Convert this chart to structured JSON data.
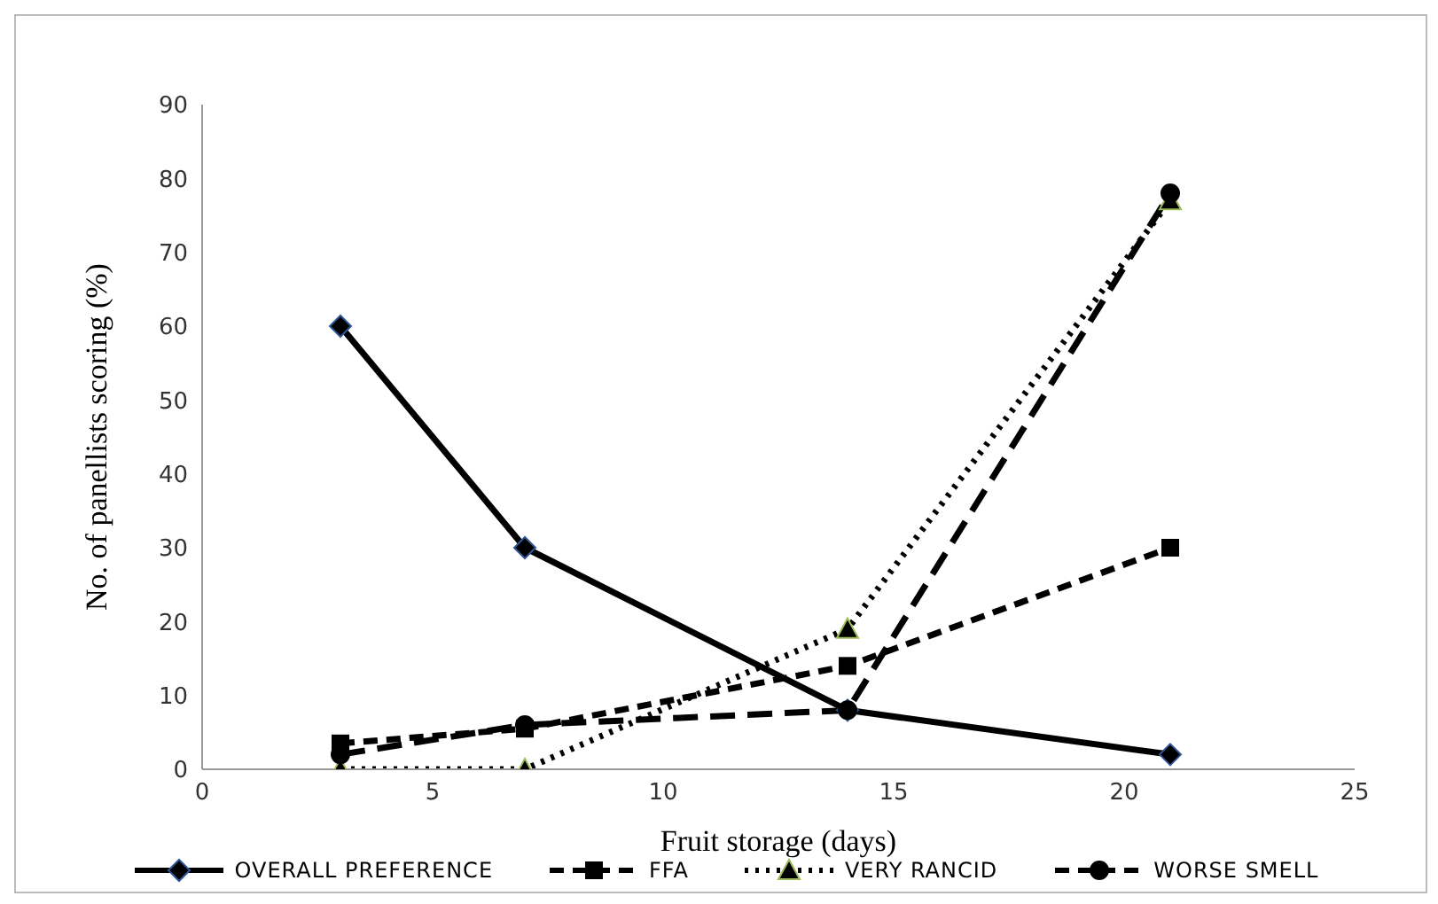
{
  "chart_data": {
    "type": "line",
    "xlabel": "Fruit storage (days)",
    "ylabel": "No. of panellists  scoring  (%)",
    "x": [
      3,
      7,
      14,
      21
    ],
    "series": [
      {
        "name": "OVERALL PREFERENCE",
        "color": "#000000",
        "values": [
          60,
          30,
          8,
          2
        ],
        "marker": "diamond",
        "line_style": "solid"
      },
      {
        "name": "FFA",
        "color": "#000000",
        "values": [
          3.5,
          5.5,
          14,
          30
        ],
        "marker": "square",
        "line_style": "dashed"
      },
      {
        "name": "VERY RANCID",
        "color": "#000000",
        "values": [
          0,
          0,
          19,
          77
        ],
        "marker": "triangle",
        "line_style": "dotted"
      },
      {
        "name": "WORSE SMELL",
        "color": "#000000",
        "values": [
          2,
          6,
          8,
          78
        ],
        "marker": "circle",
        "line_style": "dashed"
      }
    ],
    "xlim": [
      0,
      25
    ],
    "xticks": [
      0,
      5,
      10,
      15,
      20,
      25
    ],
    "ylim": [
      0,
      90
    ],
    "yticks": [
      0,
      10,
      20,
      30,
      40,
      50,
      60,
      70,
      80,
      90
    ],
    "legend": "bottom"
  }
}
